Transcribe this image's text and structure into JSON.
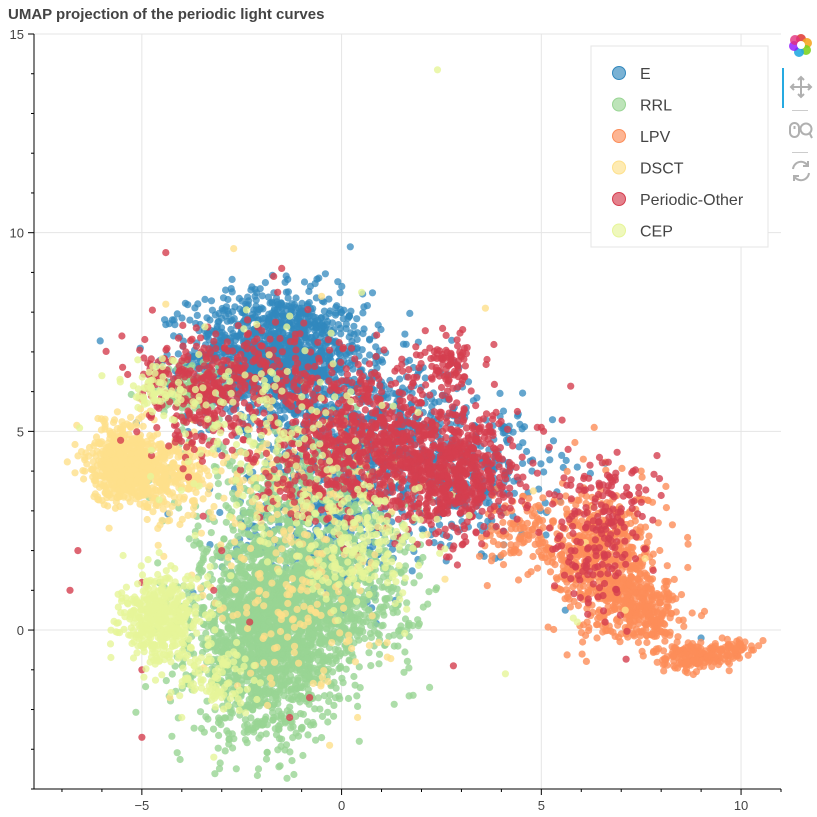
{
  "title": "UMAP projection of the periodic light curves",
  "toolbar": {
    "tools": [
      {
        "name": "bokeh-logo-icon"
      },
      {
        "name": "pan-icon",
        "active": true
      },
      {
        "name": "wheel-zoom-icon"
      },
      {
        "name": "reset-icon"
      }
    ]
  },
  "chart_data": {
    "type": "scatter",
    "title": "UMAP projection of the periodic light curves",
    "xlabel": "",
    "ylabel": "",
    "xlim": [
      -7.7,
      11.0
    ],
    "ylim": [
      -4.0,
      15.0
    ],
    "x_ticks": [
      -5,
      0,
      5,
      10
    ],
    "y_ticks": [
      0,
      5,
      10,
      15
    ],
    "grid": true,
    "legend_position": "top-right",
    "series": [
      {
        "name": "E",
        "color": "#3288bd",
        "clusters": [
          {
            "cx": -1.6,
            "cy": 6.9,
            "sx": 1.1,
            "sy": 0.8,
            "n": 1400
          },
          {
            "cx": 0.8,
            "cy": 4.8,
            "sx": 1.3,
            "sy": 1.0,
            "n": 700
          },
          {
            "cx": -0.5,
            "cy": 2.5,
            "sx": 1.2,
            "sy": 0.9,
            "n": 300
          },
          {
            "cx": 3.5,
            "cy": 3.8,
            "sx": 0.9,
            "sy": 0.8,
            "n": 200
          }
        ],
        "points": [
          [
            -2.9,
            7.9
          ],
          [
            -2.4,
            8.2
          ],
          [
            -1.0,
            8.1
          ],
          [
            0.2,
            7.9
          ],
          [
            0.7,
            7.3
          ],
          [
            1.0,
            6.8
          ],
          [
            5.6,
            0.5
          ],
          [
            5.1,
            3.2
          ],
          [
            9.0,
            -0.2
          ],
          [
            5.9,
            4.1
          ],
          [
            6.6,
            4.2
          ]
        ]
      },
      {
        "name": "RRL",
        "color": "#99d594",
        "clusters": [
          {
            "cx": -1.9,
            "cy": -0.3,
            "sx": 0.9,
            "sy": 1.2,
            "n": 1600
          },
          {
            "cx": -0.6,
            "cy": 0.8,
            "sx": 1.2,
            "sy": 0.9,
            "n": 900
          },
          {
            "cx": -1.2,
            "cy": 3.3,
            "sx": 1.3,
            "sy": 1.0,
            "n": 500
          },
          {
            "cx": -3.8,
            "cy": 6.0,
            "sx": 0.5,
            "sy": 0.4,
            "n": 120
          }
        ],
        "points": [
          [
            -2.1,
            -2.3
          ],
          [
            -1.7,
            -2.2
          ],
          [
            -2.5,
            -2.0
          ],
          [
            0.6,
            1.2
          ],
          [
            1.1,
            2.0
          ],
          [
            1.4,
            1.5
          ]
        ]
      },
      {
        "name": "LPV",
        "color": "#fc8d59",
        "clusters": [
          {
            "cx": 6.6,
            "cy": 1.7,
            "sx": 0.65,
            "sy": 0.9,
            "n": 600
          },
          {
            "cx": 7.6,
            "cy": 0.5,
            "sx": 0.45,
            "sy": 0.4,
            "n": 250
          },
          {
            "cx": 8.8,
            "cy": -0.7,
            "sx": 0.45,
            "sy": 0.18,
            "n": 150
          },
          {
            "cx": 9.7,
            "cy": -0.5,
            "sx": 0.3,
            "sy": 0.12,
            "n": 60
          },
          {
            "cx": 4.6,
            "cy": 2.4,
            "sx": 0.5,
            "sy": 0.5,
            "n": 120
          }
        ],
        "points": [
          [
            10.1,
            -0.3
          ],
          [
            7.5,
            4.0
          ],
          [
            7.9,
            0.2
          ],
          [
            8.4,
            -0.3
          ]
        ]
      },
      {
        "name": "DSCT",
        "color": "#fee08b",
        "clusters": [
          {
            "cx": -5.4,
            "cy": 4.2,
            "sx": 0.45,
            "sy": 0.5,
            "n": 600
          },
          {
            "cx": -4.3,
            "cy": 3.9,
            "sx": 0.55,
            "sy": 0.4,
            "n": 250
          },
          {
            "cx": -1.5,
            "cy": 3.5,
            "sx": 1.6,
            "sy": 1.3,
            "n": 200
          },
          {
            "cx": -1.2,
            "cy": 0.5,
            "sx": 1.2,
            "sy": 1.0,
            "n": 120
          }
        ],
        "points": [
          [
            -0.3,
            -2.9
          ],
          [
            -4.3,
            -1.7
          ],
          [
            0.4,
            -2.2
          ],
          [
            3.6,
            8.1
          ],
          [
            -2.7,
            9.6
          ],
          [
            -4.4,
            8.2
          ],
          [
            1.0,
            2.8
          ],
          [
            4.8,
            3.5
          ],
          [
            6.3,
            3.1
          ],
          [
            6.1,
            2.2
          ],
          [
            7.1,
            0.5
          ],
          [
            7.6,
            1.8
          ],
          [
            -0.5,
            8.4
          ]
        ]
      },
      {
        "name": "Periodic-Other",
        "color": "#d53e4f",
        "clusters": [
          {
            "cx": 0.9,
            "cy": 4.6,
            "sx": 1.5,
            "sy": 0.9,
            "n": 900
          },
          {
            "cx": 2.9,
            "cy": 3.8,
            "sx": 0.7,
            "sy": 0.7,
            "n": 450
          },
          {
            "cx": -3.5,
            "cy": 6.0,
            "sx": 0.8,
            "sy": 0.7,
            "n": 300
          },
          {
            "cx": -1.8,
            "cy": 6.6,
            "sx": 1.0,
            "sy": 0.5,
            "n": 150
          },
          {
            "cx": 2.7,
            "cy": 6.8,
            "sx": 0.4,
            "sy": 0.35,
            "n": 80
          },
          {
            "cx": 6.4,
            "cy": 2.2,
            "sx": 0.55,
            "sy": 0.8,
            "n": 140
          },
          {
            "cx": 6.6,
            "cy": 3.5,
            "sx": 0.6,
            "sy": 0.4,
            "n": 60
          }
        ],
        "points": [
          [
            -6.6,
            2.0
          ],
          [
            -6.8,
            1.0
          ],
          [
            -5.0,
            -2.7
          ],
          [
            -5.0,
            -1.0
          ],
          [
            -4.4,
            9.5
          ],
          [
            -1.5,
            9.1
          ],
          [
            -1.7,
            8.9
          ],
          [
            -1.6,
            8.5
          ],
          [
            2.8,
            -0.9
          ],
          [
            -0.8,
            -1.7
          ],
          [
            -1.3,
            -2.2
          ],
          [
            -3.0,
            2.0
          ],
          [
            -5.0,
            1.2
          ],
          [
            -5.5,
            7.4
          ],
          [
            -3.9,
            7.0
          ],
          [
            -3.2,
            1.0
          ],
          [
            -2.3,
            0.2
          ],
          [
            4.2,
            4.0
          ],
          [
            4.9,
            5.1
          ],
          [
            5.2,
            4.6
          ],
          [
            7.2,
            3.4
          ],
          [
            7.3,
            4.0
          ],
          [
            7.8,
            1.5
          ],
          [
            6.6,
            0.2
          ],
          [
            7.0,
            2.7
          ],
          [
            4.4,
            5.5
          ],
          [
            5.0,
            5.1
          ]
        ]
      },
      {
        "name": "CEP",
        "color": "#e6f598",
        "clusters": [
          {
            "cx": -4.5,
            "cy": 0.3,
            "sx": 0.5,
            "sy": 0.55,
            "n": 450
          },
          {
            "cx": -3.3,
            "cy": -1.2,
            "sx": 0.5,
            "sy": 0.4,
            "n": 100
          },
          {
            "cx": 0.4,
            "cy": 2.1,
            "sx": 1.0,
            "sy": 0.7,
            "n": 200
          },
          {
            "cx": -2.0,
            "cy": 5.0,
            "sx": 1.3,
            "sy": 1.2,
            "n": 150
          },
          {
            "cx": -4.6,
            "cy": 6.0,
            "sx": 0.4,
            "sy": 0.3,
            "n": 60
          }
        ],
        "points": [
          [
            2.4,
            14.1
          ],
          [
            -3.2,
            -3.2
          ],
          [
            -4.0,
            -2.2
          ],
          [
            -2.7,
            -0.8
          ],
          [
            5.8,
            0.3
          ],
          [
            5.9,
            0.2
          ],
          [
            4.1,
            -1.1
          ],
          [
            -5.5,
            0.8
          ],
          [
            -5.1,
            -0.4
          ],
          [
            -1.3,
            7.9
          ],
          [
            0.5,
            8.5
          ],
          [
            -5.1,
            5.6
          ],
          [
            -6.0,
            6.4
          ]
        ]
      }
    ]
  }
}
